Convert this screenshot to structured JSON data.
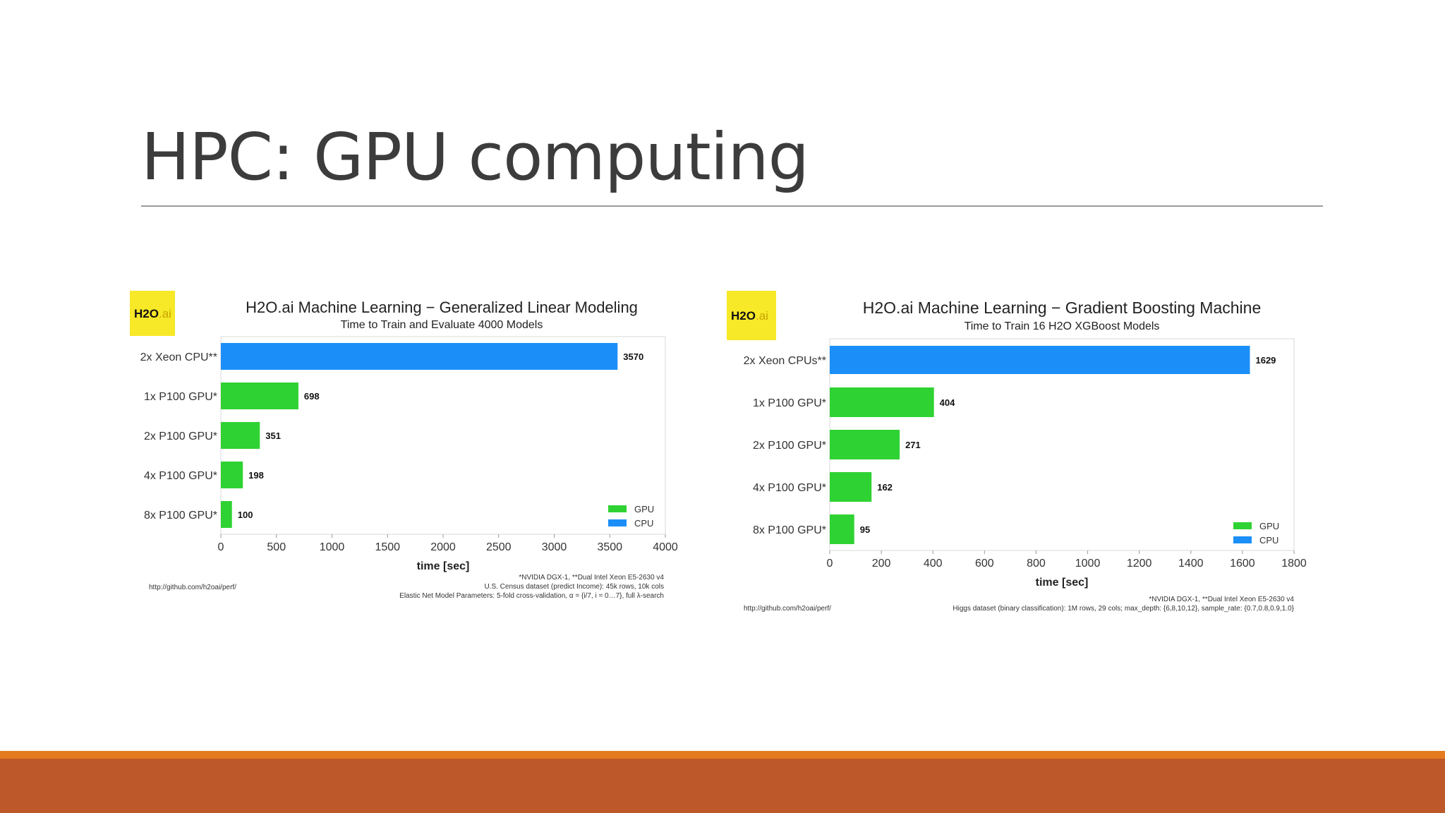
{
  "slide": {
    "title": "HPC: GPU computing"
  },
  "colors": {
    "gpu": "#2fd233",
    "cpu": "#1b8ff7",
    "logo_bg": "#f7e828",
    "accent_orange": "#e47c1f",
    "footer_brown": "#bd582a"
  },
  "logo": {
    "text_main": "H2O",
    "text_ai": ".ai"
  },
  "chart_data": [
    {
      "type": "bar",
      "orientation": "horizontal",
      "title": "H2O.ai Machine Learning − Generalized Linear Modeling",
      "subtitle": "Time to Train and Evaluate 4000 Models",
      "categories": [
        "2x Xeon CPU**",
        "1x P100 GPU*",
        "2x P100 GPU*",
        "4x P100 GPU*",
        "8x P100 GPU*"
      ],
      "values": [
        3570,
        698,
        351,
        198,
        100
      ],
      "value_labels": [
        "3570",
        "698",
        "351",
        "198",
        "100"
      ],
      "bar_series": [
        "CPU",
        "GPU",
        "GPU",
        "GPU",
        "GPU"
      ],
      "legend": [
        {
          "name": "GPU"
        },
        {
          "name": "CPU"
        }
      ],
      "legend_position": "bottom-right",
      "xlabel": "time [sec]",
      "xlim": [
        0,
        4000
      ],
      "xticks": [
        0,
        500,
        1000,
        1500,
        2000,
        2500,
        3000,
        3500,
        4000
      ],
      "xtick_labels": [
        "0",
        "500",
        "1000",
        "1500",
        "2000",
        "2500",
        "3000",
        "3500",
        "4000"
      ],
      "grid": false,
      "source": "http://github.com/h2oai/perf/",
      "notes": [
        "*NVIDIA DGX-1, **Dual Intel Xeon E5-2630 v4",
        "U.S. Census dataset (predict Income): 45k rows, 10k cols",
        "Elastic Net Model Parameters: 5-fold cross-validation, α = {i/7, i = 0…7}, full λ-search"
      ]
    },
    {
      "type": "bar",
      "orientation": "horizontal",
      "title": "H2O.ai Machine Learning − Gradient Boosting Machine",
      "subtitle": "Time to Train 16 H2O XGBoost Models",
      "categories": [
        "2x Xeon CPUs**",
        "1x P100 GPU*",
        "2x P100 GPU*",
        "4x P100 GPU*",
        "8x P100 GPU*"
      ],
      "values": [
        1629,
        404,
        271,
        162,
        95
      ],
      "value_labels": [
        "1629",
        "404",
        "271",
        "162",
        "95"
      ],
      "bar_series": [
        "CPU",
        "GPU",
        "GPU",
        "GPU",
        "GPU"
      ],
      "legend": [
        {
          "name": "GPU"
        },
        {
          "name": "CPU"
        }
      ],
      "legend_position": "bottom-right",
      "xlabel": "time [sec]",
      "xlim": [
        0,
        1800
      ],
      "xticks": [
        0,
        200,
        400,
        600,
        800,
        1000,
        1200,
        1400,
        1600,
        1800
      ],
      "xtick_labels": [
        "0",
        "200",
        "400",
        "600",
        "800",
        "1000",
        "1200",
        "1400",
        "1600",
        "1800"
      ],
      "grid": false,
      "source": "http://github.com/h2oai/perf/",
      "notes": [
        "*NVIDIA DGX-1, **Dual Intel Xeon E5-2630 v4",
        "Higgs dataset (binary classification): 1M rows, 29 cols; max_depth: {6,8,10,12}, sample_rate: {0.7,0.8,0.9,1.0}"
      ]
    }
  ]
}
